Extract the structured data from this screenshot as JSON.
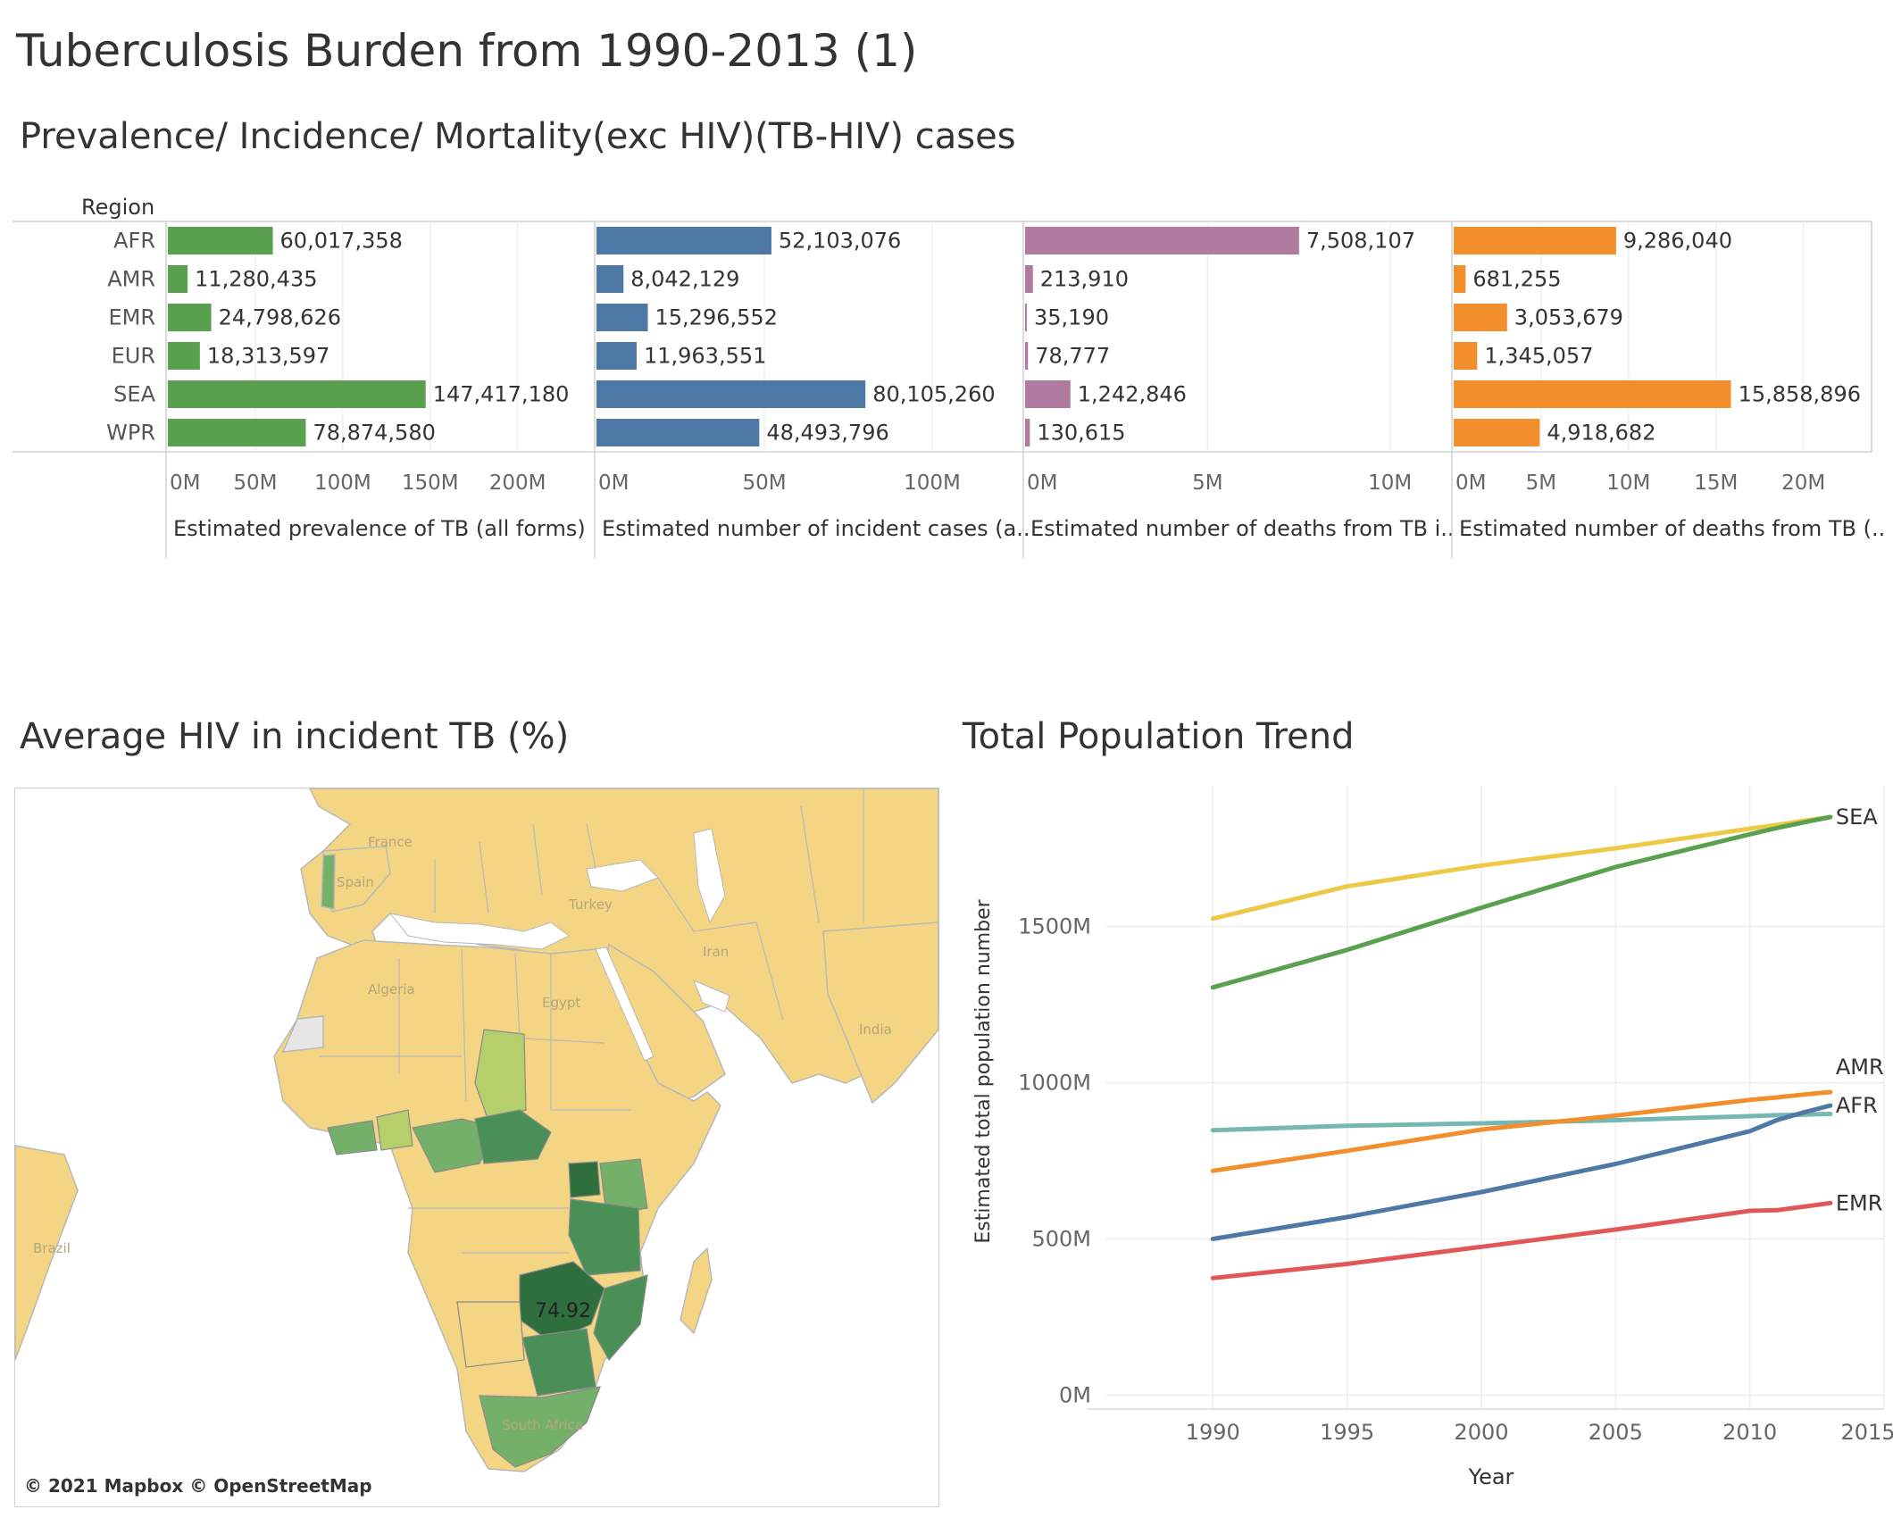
{
  "dashboard": {
    "title": "Tuberculosis Burden from 1990-2013 (1)",
    "subtitle": "Prevalence/ Incidence/ Mortality(exc HIV)(TB-HIV) cases",
    "region_header": "Region"
  },
  "chart_data": [
    {
      "type": "bar",
      "orientation": "horizontal",
      "categories": [
        "AFR",
        "AMR",
        "EMR",
        "EUR",
        "SEA",
        "WPR"
      ],
      "colors": {
        "prevalence": "#59a14f",
        "incidence": "#4e79a7",
        "deaths_exc_hiv": "#b07aa1",
        "deaths_tb_hiv": "#f28e2b"
      },
      "panels": [
        {
          "key": "prevalence",
          "xlabel": "Estimated prevalence of TB (all forms)",
          "values": [
            60017358,
            11280435,
            24798626,
            18313597,
            147417180,
            78874580
          ],
          "labels": [
            "60,017,358",
            "11,280,435",
            "24,798,626",
            "18,313,597",
            "147,417,180",
            "78,874,580"
          ],
          "xlim": [
            0,
            240000000
          ],
          "ticks": [
            0,
            50000000,
            100000000,
            150000000,
            200000000
          ],
          "tick_labels": [
            "0M",
            "50M",
            "100M",
            "150M",
            "200M"
          ],
          "color": "#59a14f"
        },
        {
          "key": "incidence",
          "xlabel": "Estimated number of incident cases (a..",
          "values": [
            52103076,
            8042129,
            15296552,
            11963551,
            80105260,
            48493796
          ],
          "labels": [
            "52,103,076",
            "8,042,129",
            "15,296,552",
            "11,963,551",
            "80,105,260",
            "48,493,796"
          ],
          "xlim": [
            0,
            125000000
          ],
          "ticks": [
            0,
            50000000,
            100000000
          ],
          "tick_labels": [
            "0M",
            "50M",
            "100M"
          ],
          "color": "#4e79a7"
        },
        {
          "key": "deaths_exc_hiv",
          "xlabel": "Estimated number of deaths from TB i..",
          "values": [
            7508107,
            213910,
            35190,
            78777,
            1242846,
            130615
          ],
          "labels": [
            "7,508,107",
            "213,910",
            "35,190",
            "78,777",
            "1,242,846",
            "130,615"
          ],
          "xlim": [
            0,
            11500000
          ],
          "ticks": [
            0,
            5000000,
            10000000
          ],
          "tick_labels": [
            "0M",
            "5M",
            "10M"
          ],
          "color": "#b07aa1"
        },
        {
          "key": "deaths_tb_hiv",
          "xlabel": "Estimated number of deaths from TB (..",
          "values": [
            9286040,
            681255,
            3053679,
            1345057,
            15858896,
            4918682
          ],
          "labels": [
            "9,286,040",
            "681,255",
            "3,053,679",
            "1,345,057",
            "15,858,896",
            "4,918,682"
          ],
          "xlim": [
            0,
            24000000
          ],
          "ticks": [
            0,
            5000000,
            10000000,
            15000000,
            20000000
          ],
          "tick_labels": [
            "0M",
            "5M",
            "10M",
            "15M",
            "20M"
          ],
          "color": "#f28e2b"
        }
      ]
    },
    {
      "type": "line",
      "title": "Total Population Trend",
      "xlabel": "Year",
      "ylabel": "Estimated total population number",
      "xlim": [
        1986,
        2015
      ],
      "ylim": [
        -50,
        1950
      ],
      "x_ticks": [
        1990,
        1995,
        2000,
        2005,
        2010,
        2015
      ],
      "y_ticks": [
        0,
        500,
        1000,
        1500
      ],
      "y_tick_labels": [
        "0M",
        "500M",
        "1000M",
        "1500M"
      ],
      "grid": true,
      "x": [
        1990,
        1995,
        2000,
        2005,
        2010,
        2011,
        2012,
        2013
      ],
      "series": [
        {
          "key": "yellow",
          "color": "#edc948",
          "values": [
            1525,
            1628,
            1695,
            1750,
            1813,
            1825,
            1838,
            1850
          ]
        },
        {
          "key": "green",
          "color": "#59a14f",
          "values": [
            1305,
            1425,
            1560,
            1690,
            1795,
            1815,
            1833,
            1850
          ],
          "end_label": "SEA"
        },
        {
          "key": "teal",
          "color": "#76b7b2",
          "values": [
            848,
            862,
            870,
            880,
            893,
            896,
            898,
            900
          ]
        },
        {
          "key": "orange",
          "color": "#f28e2b",
          "values": [
            718,
            782,
            850,
            895,
            945,
            953,
            962,
            970
          ],
          "end_label": "AMR"
        },
        {
          "key": "blue",
          "color": "#4e79a7",
          "values": [
            500,
            570,
            650,
            740,
            845,
            880,
            905,
            927
          ],
          "end_label": "AFR"
        },
        {
          "key": "red",
          "color": "#e15759",
          "values": [
            375,
            420,
            475,
            530,
            590,
            592,
            603,
            615
          ],
          "end_label": "EMR"
        }
      ]
    }
  ],
  "map": {
    "title": "Average HIV in incident TB (%)",
    "annotation": "74.92",
    "attribution": "© 2021 Mapbox © OpenStreetMap",
    "place_labels": [
      "France",
      "Spain",
      "Turkey",
      "Iran",
      "Algeria",
      "Egypt",
      "India",
      "Brazil",
      "South Africa"
    ],
    "colors": {
      "low": "#f3d584",
      "mid_light": "#b5cf6b",
      "mid": "#75b06b",
      "high": "#4a8f56",
      "max": "#2f6e3d",
      "no_data": "#e6e6e6"
    }
  }
}
